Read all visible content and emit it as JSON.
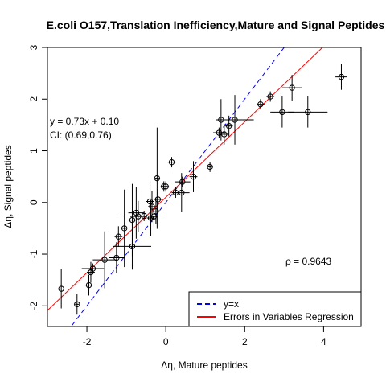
{
  "chart_data": {
    "type": "scatter",
    "title": "E.coli O157,Translation Inefficiency,Mature and Signal Peptides",
    "xlabel": "Δη, Mature peptides",
    "ylabel": "Δη, Signal peptides",
    "xlim": [
      -3.0,
      4.95
    ],
    "ylim": [
      -2.4,
      3.0
    ],
    "x_ticks": [
      -2,
      0,
      2,
      4
    ],
    "x_tick_labels": [
      "-2",
      "0",
      "2",
      "4"
    ],
    "y_ticks": [
      -2,
      -1,
      0,
      1,
      2,
      3
    ],
    "y_tick_labels": [
      "-2",
      "-1",
      "0",
      "1",
      "2",
      "3"
    ],
    "grid": false,
    "points": [
      {
        "x": -2.65,
        "y": -1.67,
        "xerr": 0.0,
        "yerr": 0.38
      },
      {
        "x": -2.25,
        "y": -1.97,
        "xerr": 0.05,
        "yerr": 0.2
      },
      {
        "x": -1.95,
        "y": -1.6,
        "xerr": 0.1,
        "yerr": 0.2
      },
      {
        "x": -1.9,
        "y": -1.35,
        "xerr": 0.1,
        "yerr": 0.2
      },
      {
        "x": -1.85,
        "y": -1.28,
        "xerr": 0.28,
        "yerr": 0.1
      },
      {
        "x": -1.55,
        "y": -1.11,
        "xerr": 0.3,
        "yerr": 0.55
      },
      {
        "x": -1.25,
        "y": -1.07,
        "xerr": 0.2,
        "yerr": 0.3
      },
      {
        "x": -1.2,
        "y": -0.66,
        "xerr": 0.1,
        "yerr": 0.2
      },
      {
        "x": -1.05,
        "y": -0.5,
        "xerr": 0.05,
        "yerr": 0.75
      },
      {
        "x": -0.85,
        "y": -0.85,
        "xerr": 0.48,
        "yerr": 0.45
      },
      {
        "x": -0.85,
        "y": -0.34,
        "xerr": 0.1,
        "yerr": 0.7
      },
      {
        "x": -0.75,
        "y": -0.2,
        "xerr": 0.2,
        "yerr": 0.5
      },
      {
        "x": -0.7,
        "y": -0.27,
        "xerr": 0.2,
        "yerr": 0.3
      },
      {
        "x": -0.55,
        "y": -0.26,
        "xerr": 0.58,
        "yerr": 0.1
      },
      {
        "x": -0.4,
        "y": 0.02,
        "xerr": 0.1,
        "yerr": 0.4
      },
      {
        "x": -0.38,
        "y": -0.3,
        "xerr": 0.1,
        "yerr": 0.35
      },
      {
        "x": -0.35,
        "y": -0.08,
        "xerr": 0.1,
        "yerr": 0.3
      },
      {
        "x": -0.3,
        "y": -0.27,
        "xerr": 0.1,
        "yerr": 0.2
      },
      {
        "x": -0.25,
        "y": -0.17,
        "xerr": 0.1,
        "yerr": 0.25
      },
      {
        "x": -0.22,
        "y": 0.47,
        "xerr": 0.05,
        "yerr": 0.98
      },
      {
        "x": -0.2,
        "y": 0.06,
        "xerr": 0.1,
        "yerr": 0.2
      },
      {
        "x": -0.05,
        "y": 0.31,
        "xerr": 0.08,
        "yerr": 0.1
      },
      {
        "x": 0.0,
        "y": 0.31,
        "xerr": 0.08,
        "yerr": 0.1
      },
      {
        "x": 0.15,
        "y": 0.78,
        "xerr": 0.1,
        "yerr": 0.1
      },
      {
        "x": 0.25,
        "y": 0.19,
        "xerr": 0.1,
        "yerr": 0.1
      },
      {
        "x": 0.4,
        "y": 0.19,
        "xerr": 0.2,
        "yerr": 0.38
      },
      {
        "x": 0.42,
        "y": 0.4,
        "xerr": 0.2,
        "yerr": 0.1
      },
      {
        "x": 0.7,
        "y": 0.5,
        "xerr": 0.1,
        "yerr": 0.3
      },
      {
        "x": 1.12,
        "y": 0.69,
        "xerr": 0.05,
        "yerr": 0.1
      },
      {
        "x": 1.35,
        "y": 1.35,
        "xerr": 0.15,
        "yerr": 0.1
      },
      {
        "x": 1.4,
        "y": 1.6,
        "xerr": 0.05,
        "yerr": 0.4
      },
      {
        "x": 1.48,
        "y": 1.32,
        "xerr": 0.12,
        "yerr": 0.2
      },
      {
        "x": 1.6,
        "y": 1.48,
        "xerr": 0.1,
        "yerr": 0.2
      },
      {
        "x": 1.75,
        "y": 1.6,
        "xerr": 0.48,
        "yerr": 0.48
      },
      {
        "x": 2.4,
        "y": 1.9,
        "xerr": 0.1,
        "yerr": 0.1
      },
      {
        "x": 2.65,
        "y": 2.05,
        "xerr": 0.1,
        "yerr": 0.1
      },
      {
        "x": 2.95,
        "y": 1.75,
        "xerr": 0.3,
        "yerr": 0.3
      },
      {
        "x": 3.2,
        "y": 2.22,
        "xerr": 0.25,
        "yerr": 0.25
      },
      {
        "x": 3.6,
        "y": 1.75,
        "xerr": 0.5,
        "yerr": 0.3
      },
      {
        "x": 4.45,
        "y": 2.43,
        "xerr": 0.15,
        "yerr": 0.25
      }
    ],
    "lines": [
      {
        "name": "y=x",
        "slope": 1.0,
        "intercept": 0.0,
        "color": "#0000ff",
        "dash": "6,4"
      },
      {
        "name": "Errors in Variables Regression",
        "slope": 0.73,
        "intercept": 0.1,
        "color": "#ff0000",
        "dash": ""
      }
    ],
    "legend": {
      "position": "bottom-right",
      "entries": [
        "y=x",
        "Errors in Variables Regression"
      ]
    },
    "annotations": {
      "equation": "y = 0.73x + 0.10",
      "ci": "CI: (0.69,0.76)",
      "rho": "ρ = 0.9643"
    },
    "colors": {
      "points": "#000000",
      "yx_line": "#0000ff",
      "regression_line": "#ff0000"
    }
  }
}
